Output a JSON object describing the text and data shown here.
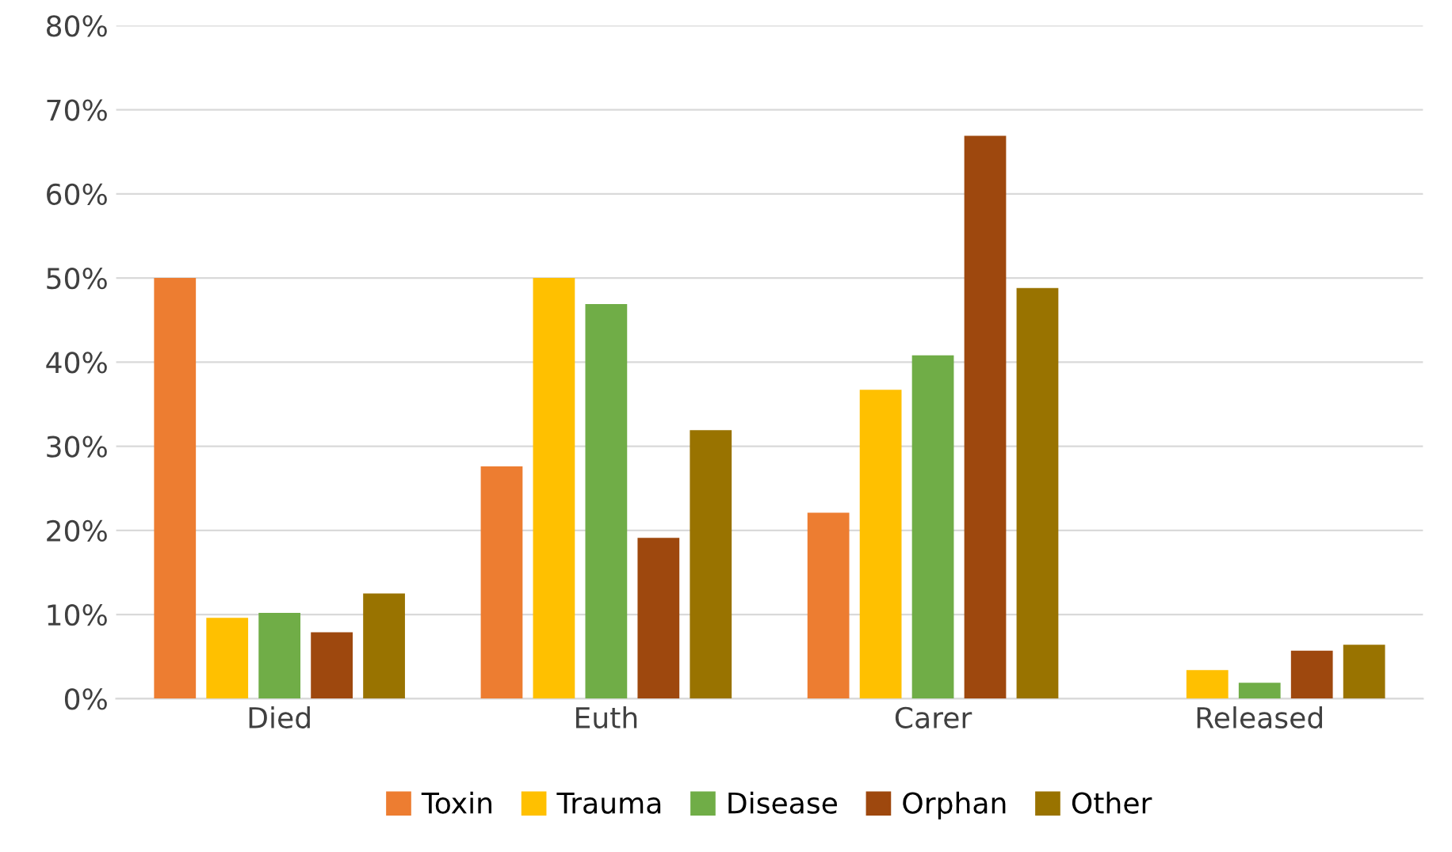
{
  "chart_data": {
    "type": "bar",
    "categories": [
      "Died",
      "Euth",
      "Carer",
      "Released"
    ],
    "series": [
      {
        "name": "Toxin",
        "color": "#ed7d31",
        "values": [
          50,
          27.6,
          22.1,
          0
        ]
      },
      {
        "name": "Trauma",
        "color": "#ffc000",
        "values": [
          9.6,
          50,
          36.7,
          3.4
        ]
      },
      {
        "name": "Disease",
        "color": "#70ad47",
        "values": [
          10.2,
          46.9,
          40.8,
          1.9
        ]
      },
      {
        "name": "Orphan",
        "color": "#9e480e",
        "values": [
          7.9,
          19.1,
          66.9,
          5.7
        ]
      },
      {
        "name": "Other",
        "color": "#997300",
        "values": [
          12.5,
          31.9,
          48.8,
          6.4
        ]
      }
    ],
    "ylim": [
      0,
      80
    ],
    "yticks": [
      {
        "value": 0,
        "label": "0%"
      },
      {
        "value": 10,
        "label": "10%"
      },
      {
        "value": 20,
        "label": "20%"
      },
      {
        "value": 30,
        "label": "30%"
      },
      {
        "value": 40,
        "label": "40%"
      },
      {
        "value": 50,
        "label": "50%"
      },
      {
        "value": 60,
        "label": "60%"
      },
      {
        "value": 70,
        "label": "70%"
      },
      {
        "value": 80,
        "label": "80%"
      }
    ],
    "grid": "y",
    "legend": "bottom"
  }
}
